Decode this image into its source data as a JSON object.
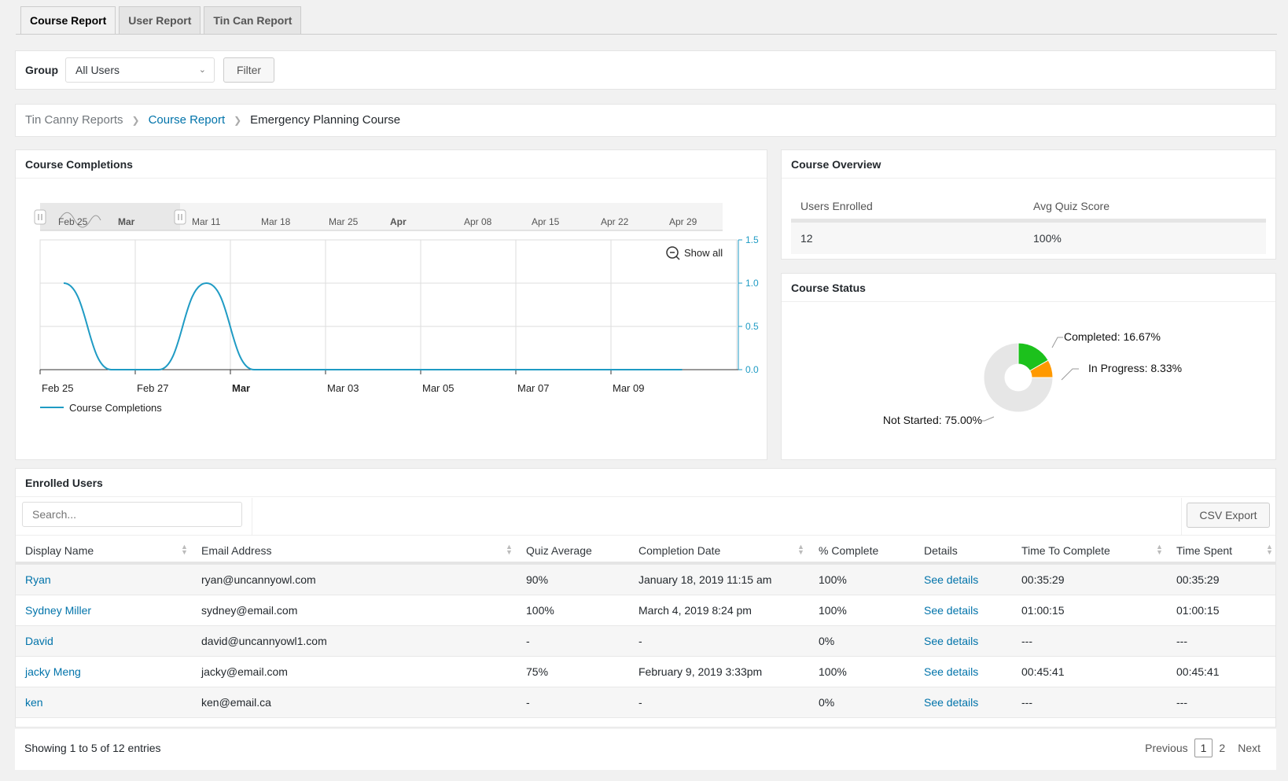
{
  "tabs": [
    "Course Report",
    "User Report",
    "Tin Can Report"
  ],
  "filter": {
    "group_label": "Group",
    "group_value": "All Users",
    "filter_button": "Filter"
  },
  "breadcrumb": {
    "root": "Tin Canny Reports",
    "section": "Course Report",
    "current": "Emergency Planning Course"
  },
  "completions": {
    "title": "Course Completions",
    "navigator_labels": [
      "Feb 25",
      "Mar",
      "Mar 11",
      "Mar 18",
      "Mar 25",
      "Apr",
      "Apr 08",
      "Apr 15",
      "Apr 22",
      "Apr 29"
    ],
    "show_all": "Show all",
    "legend": "Course Completions"
  },
  "chart_data": {
    "type": "line",
    "title": "Course Completions",
    "x_tick_labels": [
      "Feb 25",
      "Feb 27",
      "Mar",
      "Mar 03",
      "Mar 05",
      "Mar 07",
      "Mar 09"
    ],
    "y_tick_labels": [
      "0.0",
      "0.5",
      "1.0",
      "1.5"
    ],
    "ylim": [
      0,
      1.5
    ],
    "series": [
      {
        "name": "Course Completions",
        "x": [
          "2019-02-25",
          "2019-02-26",
          "2019-02-27",
          "2019-02-28",
          "2019-03-01",
          "2019-03-02",
          "2019-03-03",
          "2019-03-04",
          "2019-03-05",
          "2019-03-06",
          "2019-03-07",
          "2019-03-08",
          "2019-03-09",
          "2019-03-10"
        ],
        "values": [
          1,
          0,
          0,
          1,
          0,
          0,
          0,
          0,
          0,
          0,
          0,
          0,
          0,
          0
        ]
      }
    ],
    "color": "#1f9bc4",
    "legend_position": "bottom-left"
  },
  "overview": {
    "title": "Course Overview",
    "headers": [
      "Users Enrolled",
      "Avg Quiz Score"
    ],
    "values": [
      "12",
      "100%"
    ]
  },
  "status": {
    "title": "Course Status",
    "slices": [
      {
        "label": "Completed: 16.67%",
        "value": 16.67,
        "color": "#1cc11c"
      },
      {
        "label": "In Progress: 8.33%",
        "value": 8.33,
        "color": "#ff9900"
      },
      {
        "label": "Not Started: 75.00%",
        "value": 75.0,
        "color": "#e6e6e6"
      }
    ]
  },
  "enrolled": {
    "title": "Enrolled Users",
    "search_placeholder": "Search...",
    "csv_button": "CSV Export",
    "columns": [
      "Display Name",
      "Email Address",
      "Quiz Average",
      "Completion Date",
      "% Complete",
      "Details",
      "Time To Complete",
      "Time Spent"
    ],
    "rows": [
      [
        "Ryan",
        "ryan@uncannyowl.com",
        "90%",
        "January 18, 2019 11:15 am",
        "100%",
        "See details",
        "00:35:29",
        "00:35:29"
      ],
      [
        "Sydney Miller",
        "sydney@email.com",
        "100%",
        "March 4, 2019 8:24 pm",
        "100%",
        "See details",
        "01:00:15",
        "01:00:15"
      ],
      [
        "David",
        "david@uncannyowl1.com",
        "-",
        "-",
        "0%",
        "See details",
        "---",
        "---"
      ],
      [
        "jacky Meng",
        "jacky@email.com",
        "75%",
        "February 9, 2019 3:33pm",
        "100%",
        "See details",
        "00:45:41",
        "00:45:41"
      ],
      [
        "ken",
        "ken@email.ca",
        "-",
        "-",
        "0%",
        "See details",
        "---",
        "---"
      ]
    ],
    "info": "Showing 1 to 5 of 12 entries",
    "pager": {
      "previous": "Previous",
      "pages": [
        "1",
        "2"
      ],
      "next": "Next"
    }
  }
}
